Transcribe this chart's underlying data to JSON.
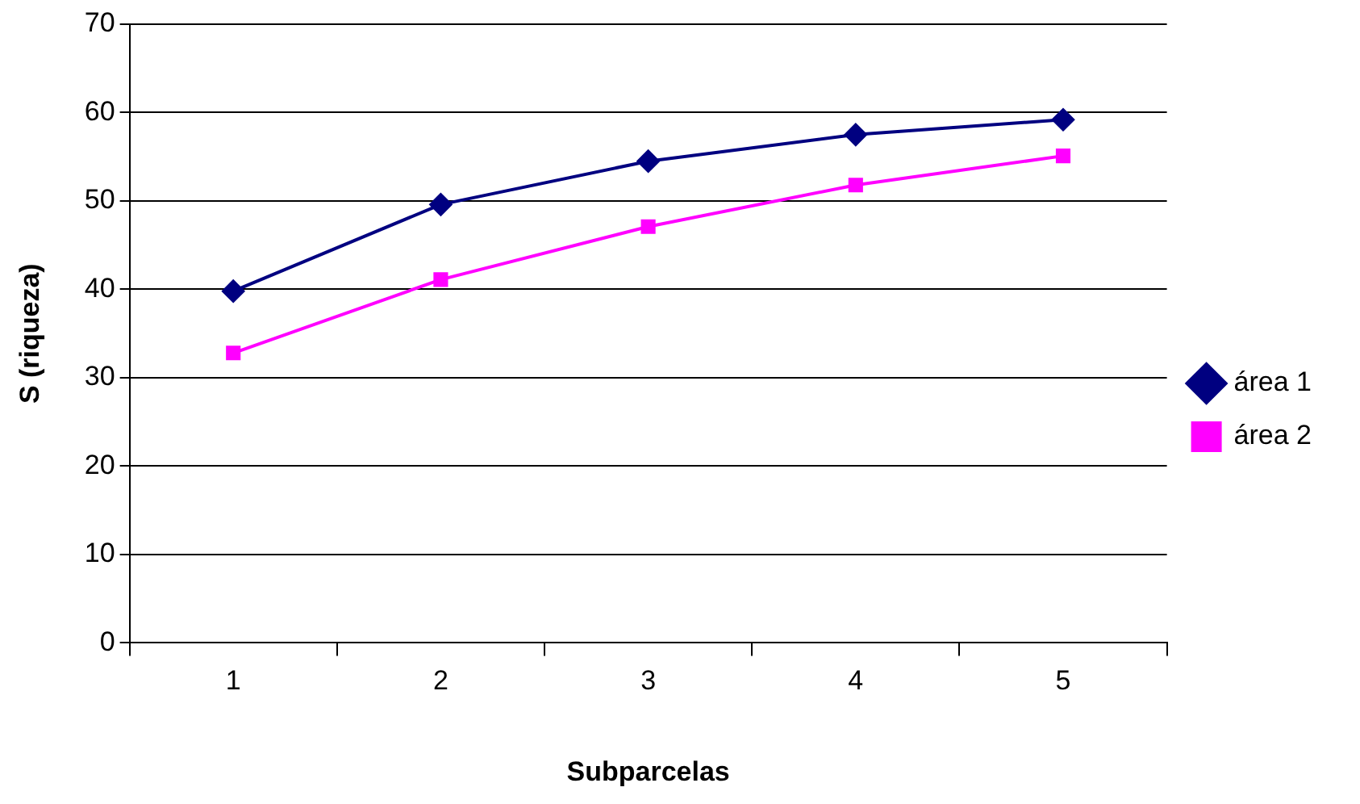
{
  "chart_data": {
    "type": "line",
    "xlabel": "Subparcelas",
    "ylabel": "S (riqueza)",
    "categories": [
      "1",
      "2",
      "3",
      "4",
      "5"
    ],
    "series": [
      {
        "name": "área 1",
        "color": "#000080",
        "marker": "diamond",
        "values": [
          39.8,
          49.6,
          54.5,
          57.5,
          59.2
        ]
      },
      {
        "name": "área 2",
        "color": "#ff00ff",
        "marker": "square",
        "values": [
          32.8,
          41.1,
          47.1,
          51.8,
          55.1
        ]
      }
    ],
    "ylim": [
      0,
      70
    ],
    "yticks": [
      0,
      10,
      20,
      30,
      40,
      50,
      60,
      70
    ],
    "grid": "y",
    "legend": "right",
    "line_style": "solid"
  }
}
